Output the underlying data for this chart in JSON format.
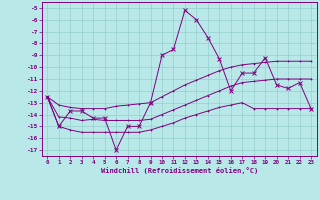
{
  "x": [
    0,
    1,
    2,
    3,
    4,
    5,
    6,
    7,
    8,
    9,
    10,
    11,
    12,
    13,
    14,
    15,
    16,
    17,
    18,
    19,
    20,
    21,
    22,
    23
  ],
  "line1": [
    -12.5,
    -15.0,
    -13.7,
    -13.7,
    -14.3,
    -14.3,
    -17.0,
    -15.0,
    -15.0,
    -13.0,
    -9.0,
    -8.5,
    -5.2,
    -6.0,
    -7.5,
    -9.3,
    -12.0,
    -10.5,
    -10.5,
    -9.2,
    -11.5,
    -11.8,
    -11.3,
    -13.5
  ],
  "line2": [
    -12.5,
    -13.2,
    -13.4,
    -13.5,
    -13.5,
    -13.5,
    -13.3,
    -13.2,
    -13.1,
    -13.0,
    -12.5,
    -12.0,
    -11.5,
    -11.1,
    -10.7,
    -10.3,
    -10.0,
    -9.8,
    -9.7,
    -9.6,
    -9.5,
    -9.5,
    -9.5,
    -9.5
  ],
  "line3": [
    -12.5,
    -14.2,
    -14.3,
    -14.5,
    -14.4,
    -14.5,
    -14.5,
    -14.5,
    -14.5,
    -14.4,
    -14.0,
    -13.6,
    -13.2,
    -12.8,
    -12.4,
    -12.0,
    -11.6,
    -11.3,
    -11.2,
    -11.1,
    -11.0,
    -11.0,
    -11.0,
    -11.0
  ],
  "line4": [
    -12.5,
    -15.0,
    -15.3,
    -15.5,
    -15.5,
    -15.5,
    -15.5,
    -15.5,
    -15.5,
    -15.3,
    -15.0,
    -14.7,
    -14.3,
    -14.0,
    -13.7,
    -13.4,
    -13.2,
    -13.0,
    -13.5,
    -13.5,
    -13.5,
    -13.5,
    -13.5,
    -13.5
  ],
  "color": "#800080",
  "bg_color": "#b8e8e8",
  "grid_color": "#90c8c8",
  "xlabel": "Windchill (Refroidissement éolien,°C)",
  "ylim": [
    -17.5,
    -4.5
  ],
  "xlim": [
    -0.5,
    23.5
  ],
  "yticks": [
    -5,
    -6,
    -7,
    -8,
    -9,
    -10,
    -11,
    -12,
    -13,
    -14,
    -15,
    -16,
    -17
  ],
  "xticks": [
    0,
    1,
    2,
    3,
    4,
    5,
    6,
    7,
    8,
    9,
    10,
    11,
    12,
    13,
    14,
    15,
    16,
    17,
    18,
    19,
    20,
    21,
    22,
    23
  ]
}
